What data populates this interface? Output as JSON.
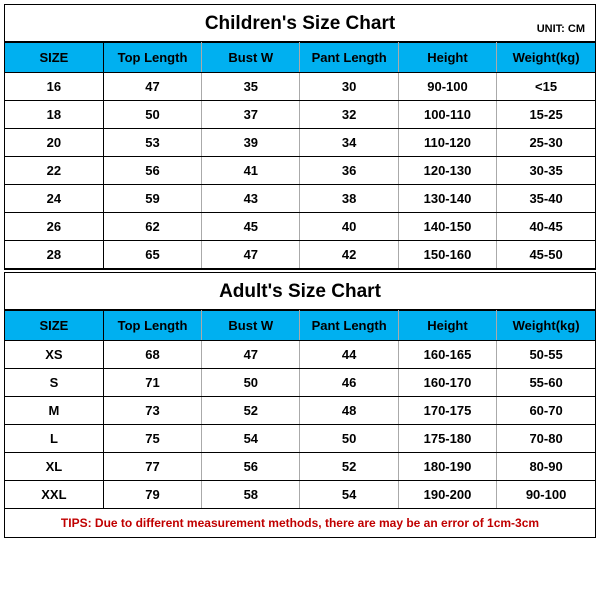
{
  "header_color": "#00b0f0",
  "tips_color": "#c00000",
  "children": {
    "title": "Children's Size Chart",
    "unit": "UNIT: CM",
    "columns": [
      "SIZE",
      "Top Length",
      "Bust W",
      "Pant Length",
      "Height",
      "Weight(kg)"
    ],
    "rows": [
      [
        "16",
        "47",
        "35",
        "30",
        "90-100",
        "<15"
      ],
      [
        "18",
        "50",
        "37",
        "32",
        "100-110",
        "15-25"
      ],
      [
        "20",
        "53",
        "39",
        "34",
        "110-120",
        "25-30"
      ],
      [
        "22",
        "56",
        "41",
        "36",
        "120-130",
        "30-35"
      ],
      [
        "24",
        "59",
        "43",
        "38",
        "130-140",
        "35-40"
      ],
      [
        "26",
        "62",
        "45",
        "40",
        "140-150",
        "40-45"
      ],
      [
        "28",
        "65",
        "47",
        "42",
        "150-160",
        "45-50"
      ]
    ]
  },
  "adult": {
    "title": "Adult's Size Chart",
    "columns": [
      "SIZE",
      "Top Length",
      "Bust W",
      "Pant Length",
      "Height",
      "Weight(kg)"
    ],
    "rows": [
      [
        "XS",
        "68",
        "47",
        "44",
        "160-165",
        "50-55"
      ],
      [
        "S",
        "71",
        "50",
        "46",
        "160-170",
        "55-60"
      ],
      [
        "M",
        "73",
        "52",
        "48",
        "170-175",
        "60-70"
      ],
      [
        "L",
        "75",
        "54",
        "50",
        "175-180",
        "70-80"
      ],
      [
        "XL",
        "77",
        "56",
        "52",
        "180-190",
        "80-90"
      ],
      [
        "XXL",
        "79",
        "58",
        "54",
        "190-200",
        "90-100"
      ]
    ]
  },
  "tips": "TIPS: Due to different measurement methods, there are may be an error of 1cm-3cm"
}
